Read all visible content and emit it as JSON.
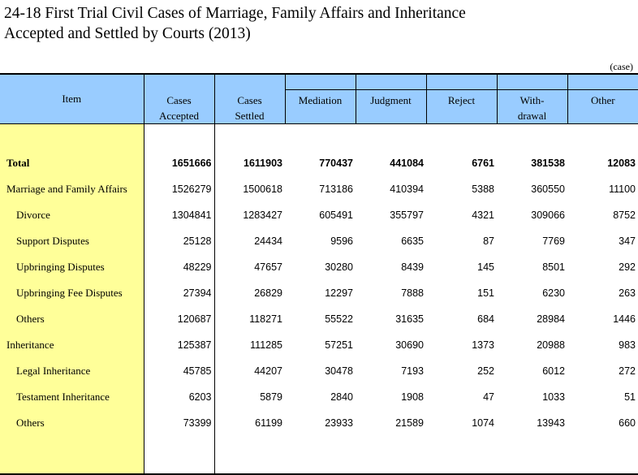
{
  "title": {
    "line1": "24-18  First Trial Civil Cases of Marriage, Family Affairs and Inheritance",
    "line2": "Accepted and Settled by Courts (2013)"
  },
  "unit": "(case)",
  "headers": {
    "item": "Item",
    "accepted_1": "Cases",
    "accepted_2": "Accepted",
    "settled_1": "Cases",
    "settled_2": "Settled",
    "mediation": "Mediation",
    "judgment": "Judgment",
    "reject": "Reject",
    "withdrawal_1": "With-",
    "withdrawal_2": "drawal",
    "other": "Other"
  },
  "rows": [
    {
      "label": "Total",
      "accepted": "1651666",
      "settled": "1611903",
      "mediation": "770437",
      "judgment": "441084",
      "reject": "6761",
      "withdrawal": "381538",
      "other": "12083"
    },
    {
      "label": "Marriage and Family Affairs",
      "accepted": "1526279",
      "settled": "1500618",
      "mediation": "713186",
      "judgment": "410394",
      "reject": "5388",
      "withdrawal": "360550",
      "other": "11100"
    },
    {
      "label": "Divorce",
      "accepted": "1304841",
      "settled": "1283427",
      "mediation": "605491",
      "judgment": "355797",
      "reject": "4321",
      "withdrawal": "309066",
      "other": "8752"
    },
    {
      "label": "Support Disputes",
      "accepted": "25128",
      "settled": "24434",
      "mediation": "9596",
      "judgment": "6635",
      "reject": "87",
      "withdrawal": "7769",
      "other": "347"
    },
    {
      "label": "Upbringing Disputes",
      "accepted": "48229",
      "settled": "47657",
      "mediation": "30280",
      "judgment": "8439",
      "reject": "145",
      "withdrawal": "8501",
      "other": "292"
    },
    {
      "label": "Upbringing Fee Disputes",
      "accepted": "27394",
      "settled": "26829",
      "mediation": "12297",
      "judgment": "7888",
      "reject": "151",
      "withdrawal": "6230",
      "other": "263"
    },
    {
      "label": "Others",
      "accepted": "120687",
      "settled": "118271",
      "mediation": "55522",
      "judgment": "31635",
      "reject": "684",
      "withdrawal": "28984",
      "other": "1446"
    },
    {
      "label": "Inheritance",
      "accepted": "125387",
      "settled": "111285",
      "mediation": "57251",
      "judgment": "30690",
      "reject": "1373",
      "withdrawal": "20988",
      "other": "983"
    },
    {
      "label": "Legal Inheritance",
      "accepted": "45785",
      "settled": "44207",
      "mediation": "30478",
      "judgment": "7193",
      "reject": "252",
      "withdrawal": "6012",
      "other": "272"
    },
    {
      "label": "Testament Inheritance",
      "accepted": "6203",
      "settled": "5879",
      "mediation": "2840",
      "judgment": "1908",
      "reject": "47",
      "withdrawal": "1033",
      "other": "51"
    },
    {
      "label": "Others",
      "accepted": "73399",
      "settled": "61199",
      "mediation": "23933",
      "judgment": "21589",
      "reject": "1074",
      "withdrawal": "13943",
      "other": "660"
    }
  ],
  "colors": {
    "header_bg": "#99ccff",
    "item_column_bg": "#ffff99"
  }
}
